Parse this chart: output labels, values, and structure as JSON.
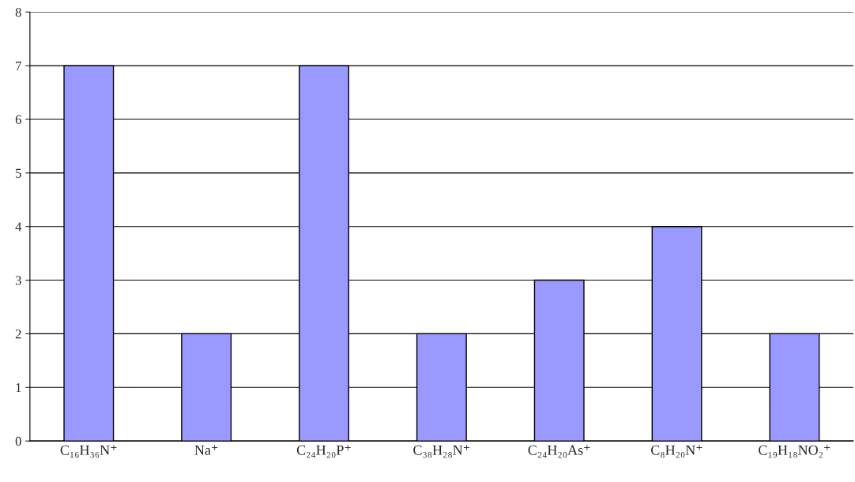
{
  "chart_data": {
    "type": "bar",
    "categories": [
      "C₁₆H₃₆N⁺",
      "Na⁺",
      "C₂₄H₂₀P⁺",
      "C₃₈H₂₈N⁺",
      "C₂₄H₂₀As⁺",
      "C₈H₂₀N⁺",
      "C₁₉H₁₈NO₂⁺"
    ],
    "values": [
      7,
      2,
      7,
      2,
      3,
      4,
      2
    ],
    "color": "#9999ff",
    "ylim": [
      0,
      8
    ],
    "yticks": [
      0,
      1,
      2,
      3,
      4,
      5,
      6,
      7,
      8
    ],
    "grid": "y"
  }
}
